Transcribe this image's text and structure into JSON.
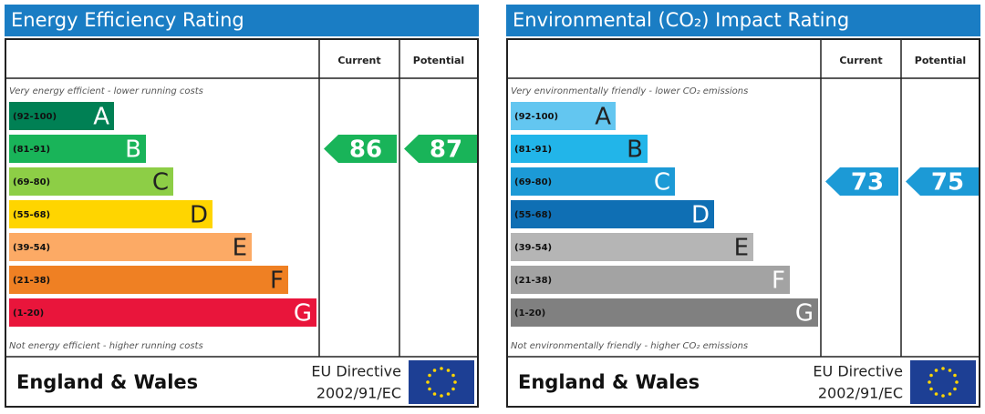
{
  "chart_data": [
    {
      "type": "epc",
      "title": "Energy Efficiency Rating",
      "column_headers": [
        "Current",
        "Potential"
      ],
      "top_note": "Very energy efficient - lower running costs",
      "bottom_note": "Not energy efficient - higher running costs",
      "categories": [
        "(92-100)",
        "(81-91)",
        "(69-80)",
        "(55-68)",
        "(39-54)",
        "(21-38)",
        "(1-20)"
      ],
      "letters": [
        "A",
        "B",
        "C",
        "D",
        "E",
        "F",
        "G"
      ],
      "colors": [
        "#008054",
        "#19b459",
        "#8dce46",
        "#ffd500",
        "#fcaa65",
        "#ef8023",
        "#e9153b"
      ],
      "letter_colors": [
        "#ffffff",
        "#ffffff",
        "#222222",
        "#222222",
        "#222222",
        "#222222",
        "#ffffff"
      ],
      "current": 86,
      "potential": 87,
      "footer": {
        "region": "England & Wales",
        "directive": "EU Directive",
        "directive_number": "2002/91/EC"
      }
    },
    {
      "type": "epc",
      "title": "Environmental (CO₂) Impact Rating",
      "column_headers": [
        "Current",
        "Potential"
      ],
      "top_note": "Very environmentally friendly - lower CO₂ emissions",
      "bottom_note": "Not environmentally friendly - higher CO₂ emissions",
      "categories": [
        "(92-100)",
        "(81-91)",
        "(69-80)",
        "(55-68)",
        "(39-54)",
        "(21-38)",
        "(1-20)"
      ],
      "letters": [
        "A",
        "B",
        "C",
        "D",
        "E",
        "F",
        "G"
      ],
      "colors": [
        "#63c6f0",
        "#22b5e9",
        "#1c9ad6",
        "#0f6fb4",
        "#b5b5b5",
        "#a3a3a3",
        "#808080"
      ],
      "letter_colors": [
        "#222222",
        "#222222",
        "#ffffff",
        "#ffffff",
        "#222222",
        "#ffffff",
        "#ffffff"
      ],
      "current": 73,
      "potential": 75,
      "footer": {
        "region": "England & Wales",
        "directive": "EU Directive",
        "directive_number": "2002/91/EC"
      }
    }
  ]
}
